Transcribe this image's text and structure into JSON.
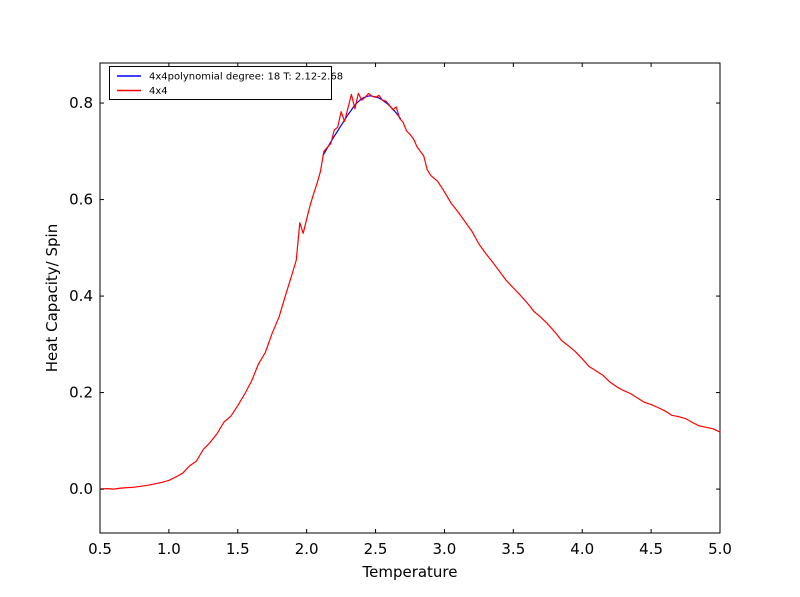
{
  "figure": {
    "background_color": "#ffffff",
    "frame_color": "#000000"
  },
  "chart_data": {
    "type": "line",
    "title": "",
    "xlabel": "Temperature",
    "ylabel": "Heat Capacity/ Spin",
    "xlim": [
      0.5,
      5.0
    ],
    "ylim": [
      -0.091,
      0.883
    ],
    "grid": false,
    "legend_position": "upper left",
    "xticks": {
      "values": [
        0.5,
        1.0,
        1.5,
        2.0,
        2.5,
        3.0,
        3.5,
        4.0,
        4.5,
        5.0
      ],
      "labels": [
        "0.5",
        "1.0",
        "1.5",
        "2.0",
        "2.5",
        "3.0",
        "3.5",
        "4.0",
        "4.5",
        "5.0"
      ]
    },
    "yticks": {
      "values": [
        0.0,
        0.2,
        0.4,
        0.6,
        0.8
      ],
      "labels": [
        "0.0",
        "0.2",
        "0.4",
        "0.6",
        "0.8"
      ]
    },
    "series": [
      {
        "name": "4x4polynomial degree: 18 T: 2.12-2.68",
        "color": "#0000ff",
        "x": [
          2.12,
          2.14,
          2.16,
          2.18,
          2.2,
          2.22,
          2.24,
          2.26,
          2.28,
          2.3,
          2.32,
          2.34,
          2.36,
          2.38,
          2.4,
          2.42,
          2.44,
          2.46,
          2.48,
          2.5,
          2.52,
          2.54,
          2.56,
          2.58,
          2.6,
          2.62,
          2.64,
          2.66,
          2.68
        ],
        "y": [
          0.692,
          0.702,
          0.712,
          0.722,
          0.731,
          0.74,
          0.749,
          0.758,
          0.767,
          0.776,
          0.784,
          0.792,
          0.799,
          0.804,
          0.809,
          0.812,
          0.814,
          0.815,
          0.814,
          0.813,
          0.811,
          0.808,
          0.804,
          0.8,
          0.795,
          0.789,
          0.783,
          0.776,
          0.768
        ]
      },
      {
        "name": "4x4",
        "color": "#ff0000",
        "x": [
          0.5,
          0.55,
          0.6,
          0.65,
          0.7,
          0.75,
          0.8,
          0.85,
          0.9,
          0.95,
          1.0,
          1.05,
          1.1,
          1.15,
          1.2,
          1.25,
          1.3,
          1.35,
          1.4,
          1.45,
          1.5,
          1.55,
          1.6,
          1.65,
          1.7,
          1.75,
          1.8,
          1.85,
          1.9,
          1.925,
          1.95,
          1.975,
          2.0,
          2.025,
          2.05,
          2.075,
          2.1,
          2.125,
          2.15,
          2.175,
          2.2,
          2.225,
          2.25,
          2.275,
          2.3,
          2.325,
          2.35,
          2.375,
          2.4,
          2.425,
          2.45,
          2.475,
          2.5,
          2.525,
          2.55,
          2.575,
          2.6,
          2.625,
          2.65,
          2.675,
          2.7,
          2.725,
          2.75,
          2.775,
          2.8,
          2.825,
          2.85,
          2.875,
          2.9,
          2.95,
          3.0,
          3.05,
          3.1,
          3.15,
          3.2,
          3.25,
          3.3,
          3.35,
          3.4,
          3.45,
          3.5,
          3.55,
          3.6,
          3.65,
          3.7,
          3.75,
          3.8,
          3.85,
          3.9,
          3.95,
          4.0,
          4.05,
          4.1,
          4.15,
          4.2,
          4.25,
          4.3,
          4.35,
          4.4,
          4.45,
          4.5,
          4.55,
          4.6,
          4.65,
          4.7,
          4.75,
          4.8,
          4.85,
          4.9,
          4.95,
          5.0
        ],
        "y": [
          0.0,
          0.001,
          0.0,
          0.002,
          0.003,
          0.004,
          0.006,
          0.008,
          0.011,
          0.014,
          0.018,
          0.025,
          0.033,
          0.048,
          0.058,
          0.082,
          0.097,
          0.115,
          0.139,
          0.151,
          0.173,
          0.197,
          0.224,
          0.259,
          0.283,
          0.323,
          0.357,
          0.405,
          0.451,
          0.475,
          0.552,
          0.53,
          0.56,
          0.588,
          0.612,
          0.633,
          0.658,
          0.7,
          0.708,
          0.716,
          0.744,
          0.75,
          0.782,
          0.762,
          0.79,
          0.818,
          0.788,
          0.82,
          0.806,
          0.812,
          0.82,
          0.814,
          0.812,
          0.816,
          0.806,
          0.804,
          0.796,
          0.786,
          0.792,
          0.768,
          0.76,
          0.742,
          0.735,
          0.726,
          0.71,
          0.7,
          0.69,
          0.662,
          0.65,
          0.638,
          0.616,
          0.592,
          0.574,
          0.554,
          0.534,
          0.508,
          0.488,
          0.47,
          0.451,
          0.432,
          0.417,
          0.402,
          0.386,
          0.368,
          0.356,
          0.342,
          0.326,
          0.308,
          0.297,
          0.285,
          0.27,
          0.254,
          0.245,
          0.236,
          0.222,
          0.212,
          0.204,
          0.198,
          0.189,
          0.18,
          0.175,
          0.169,
          0.162,
          0.153,
          0.15,
          0.146,
          0.138,
          0.131,
          0.128,
          0.125,
          0.118
        ]
      }
    ]
  }
}
